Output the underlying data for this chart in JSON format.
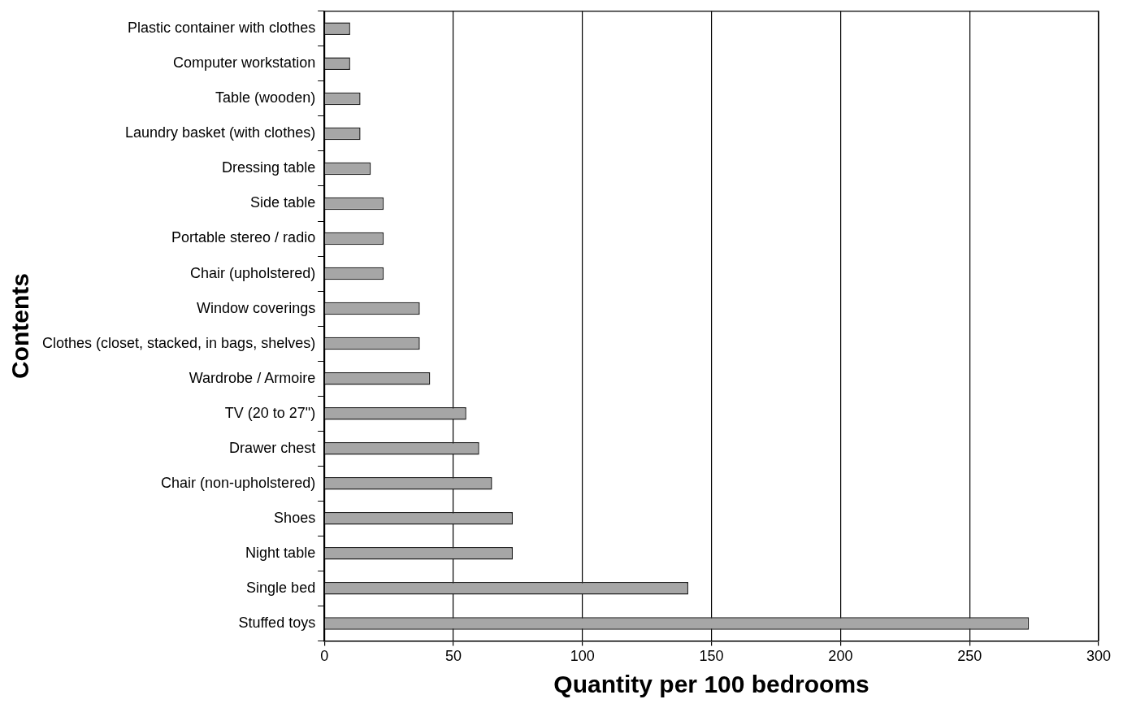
{
  "chart_data": {
    "type": "bar",
    "orientation": "horizontal",
    "xlabel": "Quantity per 100 bedrooms",
    "ylabel": "Contents",
    "categories": [
      "Plastic container with clothes",
      "Computer workstation",
      "Table (wooden)",
      "Laundry basket (with clothes)",
      "Dressing table",
      "Side table",
      "Portable stereo / radio",
      "Chair (upholstered)",
      "Window coverings",
      "Clothes (closet, stacked, in bags, shelves)",
      "Wardrobe / Armoire",
      "TV (20 to 27\")",
      "Drawer chest",
      "Chair (non-upholstered)",
      "Shoes",
      "Night table",
      "Single bed",
      "Stuffed toys"
    ],
    "values": [
      10,
      10,
      14,
      14,
      18,
      23,
      23,
      23,
      37,
      37,
      41,
      55,
      60,
      65,
      73,
      73,
      141,
      273
    ],
    "color": "#a6a6a6",
    "xlim": [
      0,
      300
    ],
    "xticks": [
      0,
      50,
      100,
      150,
      200,
      250,
      300
    ],
    "grid": "x",
    "legend": false
  }
}
